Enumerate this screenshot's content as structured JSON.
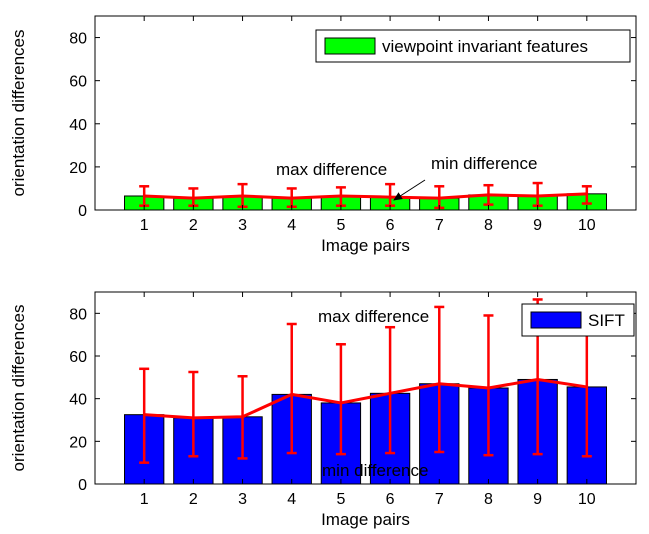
{
  "chart_data": [
    {
      "type": "bar",
      "title": "",
      "xlabel": "Image pairs",
      "ylabel": "orientation differences",
      "categories": [
        "1",
        "2",
        "3",
        "4",
        "5",
        "6",
        "7",
        "8",
        "9",
        "10"
      ],
      "ylim": [
        0,
        90
      ],
      "yticks": [
        0,
        20,
        40,
        60,
        80
      ],
      "grid": false,
      "legend_position": "top-right",
      "series": [
        {
          "name": "viewpoint invariant features",
          "color": "#00ff00",
          "values": [
            6.5,
            5.5,
            6.5,
            5.5,
            6.5,
            6,
            5.5,
            7,
            6.5,
            7.5
          ],
          "error_max": [
            11,
            10,
            12,
            10,
            10.5,
            12,
            11,
            11.5,
            12.5,
            11
          ],
          "error_min": [
            2,
            2,
            1.5,
            1.5,
            2,
            2,
            1,
            2.5,
            2,
            3
          ]
        }
      ],
      "line": {
        "color": "#ff0000",
        "values": [
          6.5,
          5.5,
          6.5,
          5.5,
          6.5,
          6,
          5.5,
          7,
          6.5,
          7.5
        ]
      },
      "annotations": {
        "max_label": "max difference",
        "min_label": "min difference"
      }
    },
    {
      "type": "bar",
      "title": "",
      "xlabel": "Image pairs",
      "ylabel": "orientation differences",
      "categories": [
        "1",
        "2",
        "3",
        "4",
        "5",
        "6",
        "7",
        "8",
        "9",
        "10"
      ],
      "ylim": [
        0,
        90
      ],
      "yticks": [
        0,
        20,
        40,
        60,
        80
      ],
      "grid": false,
      "legend_position": "top-right",
      "series": [
        {
          "name": "SIFT",
          "color": "#0000ff",
          "values": [
            32.5,
            31,
            31.5,
            42,
            38,
            42.5,
            47,
            45,
            49,
            45.5
          ],
          "error_max": [
            54,
            52.5,
            50.5,
            75,
            65.5,
            73.5,
            83,
            79,
            86.5,
            79
          ],
          "error_min": [
            10,
            13,
            12,
            14.5,
            14,
            14.5,
            15,
            13.5,
            14,
            13
          ]
        }
      ],
      "line": {
        "color": "#ff0000",
        "values": [
          32.5,
          31,
          31.5,
          42,
          38,
          42.5,
          47,
          45,
          49,
          45.5
        ]
      },
      "annotations": {
        "max_label": "max difference",
        "min_label": "min difference"
      }
    }
  ]
}
